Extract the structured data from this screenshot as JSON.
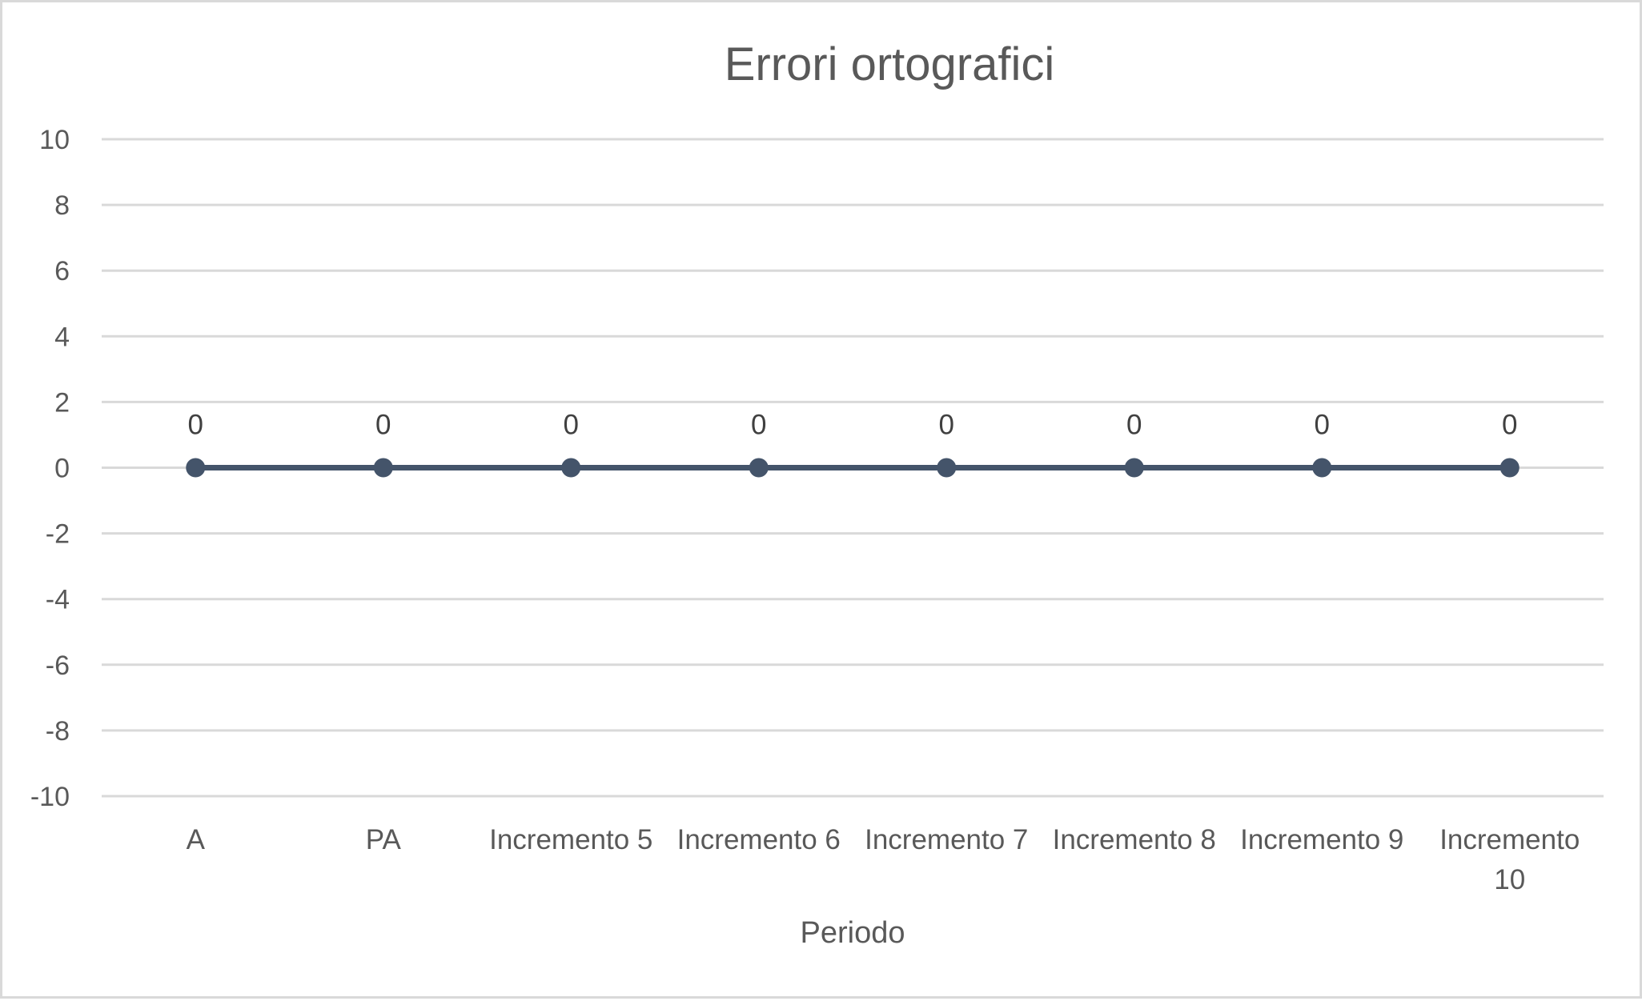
{
  "chart_data": {
    "type": "line",
    "title": "Errori ortografici",
    "xlabel": "Periodo",
    "ylabel": "",
    "categories": [
      "A",
      "PA",
      "Incremento 5",
      "Incremento 6",
      "Incremento 7",
      "Incremento 8",
      "Incremento 9",
      "Incremento 10"
    ],
    "series": [
      {
        "values": [
          0,
          0,
          0,
          0,
          0,
          0,
          0,
          0
        ],
        "color": "#44546a",
        "data_labels": [
          "0",
          "0",
          "0",
          "0",
          "0",
          "0",
          "0",
          "0"
        ]
      }
    ],
    "ylim": [
      -10,
      10
    ],
    "yticks": [
      10,
      8,
      6,
      4,
      2,
      0,
      -2,
      -4,
      -6,
      -8,
      -10
    ],
    "ytick_labels": [
      "10",
      "8",
      "6",
      "4",
      "2",
      "0",
      "-2",
      "-4",
      "-6",
      "-8",
      "-10"
    ],
    "grid": true,
    "legend": "none",
    "colors": {
      "gridline": "#d9d9d9",
      "text": "#595959",
      "border": "#d9d9d9"
    }
  }
}
